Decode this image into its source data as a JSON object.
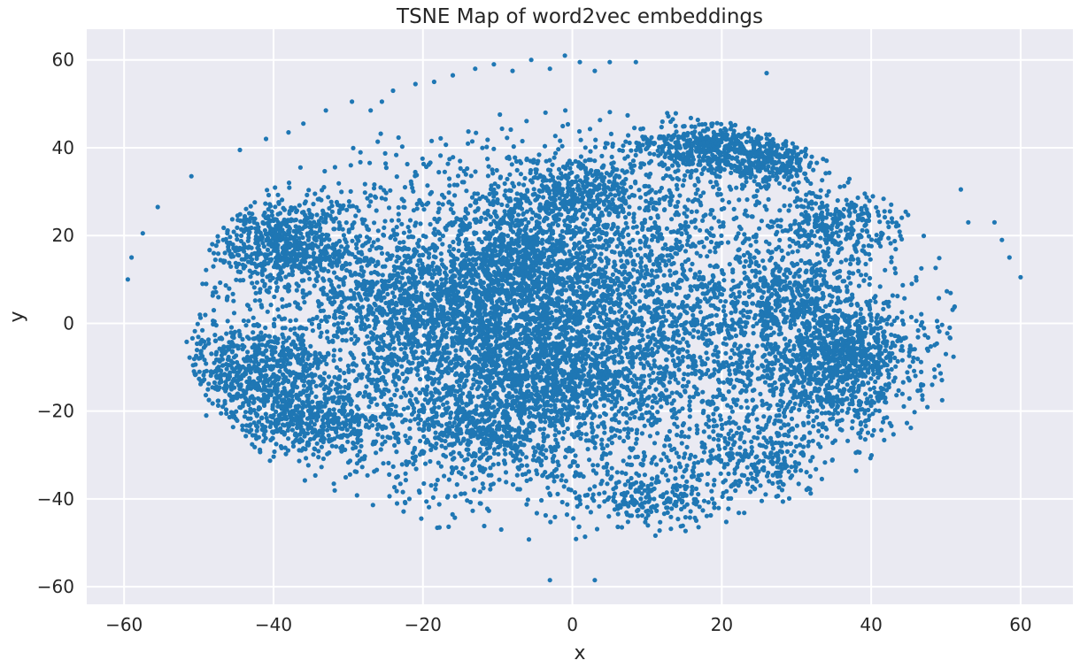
{
  "chart_data": {
    "type": "scatter",
    "title": "TSNE Map of word2vec embeddings",
    "xlabel": "x",
    "ylabel": "y",
    "xlim": [
      -65,
      67
    ],
    "ylim": [
      -64,
      67
    ],
    "xticks": [
      -60,
      -40,
      -20,
      0,
      20,
      40,
      60
    ],
    "yticks": [
      60,
      40,
      20,
      0,
      -20,
      -40,
      -60
    ],
    "xtick_labels": [
      "−60",
      "−40",
      "−20",
      "0",
      "20",
      "40",
      "60"
    ],
    "ytick_labels": [
      "60",
      "40",
      "20",
      "0",
      "−20",
      "−40",
      "−60"
    ],
    "grid": true,
    "legend": "none",
    "style": {
      "background": "#eaeaf2",
      "grid_color": "#ffffff",
      "point_color": "#1f77b4",
      "text_color": "#262626"
    },
    "clusters": [
      {
        "center": [
          0,
          0
        ],
        "spread": [
          22,
          20
        ],
        "count": 5200
      },
      {
        "center": [
          -38,
          18
        ],
        "spread": [
          5,
          5
        ],
        "count": 650
      },
      {
        "center": [
          -42,
          -12
        ],
        "spread": [
          5,
          6
        ],
        "count": 650
      },
      {
        "center": [
          -34,
          -22
        ],
        "spread": [
          5,
          4
        ],
        "count": 400
      },
      {
        "center": [
          -20,
          3
        ],
        "spread": [
          6,
          8
        ],
        "count": 600
      },
      {
        "center": [
          -7,
          14
        ],
        "spread": [
          6,
          7
        ],
        "count": 700
      },
      {
        "center": [
          -4,
          -10
        ],
        "spread": [
          7,
          8
        ],
        "count": 900
      },
      {
        "center": [
          -12,
          -25
        ],
        "spread": [
          5,
          5
        ],
        "count": 350
      },
      {
        "center": [
          18,
          40
        ],
        "spread": [
          5,
          3
        ],
        "count": 450
      },
      {
        "center": [
          27,
          37
        ],
        "spread": [
          3,
          3
        ],
        "count": 250
      },
      {
        "center": [
          34,
          -12
        ],
        "spread": [
          5,
          6
        ],
        "count": 600
      },
      {
        "center": [
          38,
          -5
        ],
        "spread": [
          4,
          4
        ],
        "count": 300
      },
      {
        "center": [
          25,
          -30
        ],
        "spread": [
          4,
          4
        ],
        "count": 200
      },
      {
        "center": [
          30,
          5
        ],
        "spread": [
          5,
          5
        ],
        "count": 350
      },
      {
        "center": [
          35,
          22
        ],
        "spread": [
          4,
          4
        ],
        "count": 250
      },
      {
        "center": [
          10,
          -40
        ],
        "spread": [
          6,
          3
        ],
        "count": 200
      },
      {
        "center": [
          2,
          30
        ],
        "spread": [
          5,
          4
        ],
        "count": 300
      }
    ],
    "outliers": [
      [
        -59.5,
        10
      ],
      [
        -59,
        15
      ],
      [
        -57.5,
        20.5
      ],
      [
        -55.5,
        26.5
      ],
      [
        -51,
        33.5
      ],
      [
        -44.5,
        39.5
      ],
      [
        -41,
        42
      ],
      [
        -38,
        43.5
      ],
      [
        -36,
        45.5
      ],
      [
        -33,
        48.5
      ],
      [
        -29.5,
        50.5
      ],
      [
        -27,
        48.5
      ],
      [
        -25.5,
        50.5
      ],
      [
        -24,
        53
      ],
      [
        -21,
        54.5
      ],
      [
        -18.5,
        55
      ],
      [
        -16,
        56.5
      ],
      [
        -13,
        58
      ],
      [
        -10.5,
        59
      ],
      [
        -8,
        57.5
      ],
      [
        -5.5,
        60
      ],
      [
        -3,
        58
      ],
      [
        -1,
        61
      ],
      [
        1,
        59.5
      ],
      [
        3,
        57.5
      ],
      [
        5,
        59.5
      ],
      [
        8.5,
        59.5
      ],
      [
        26,
        57
      ],
      [
        52,
        30.5
      ],
      [
        53,
        23
      ],
      [
        56.5,
        23
      ],
      [
        57.5,
        19
      ],
      [
        58.5,
        15
      ],
      [
        60,
        10.5
      ],
      [
        -3,
        -58.5
      ],
      [
        3,
        -58.5
      ],
      [
        -50,
        -8
      ],
      [
        -49,
        -21
      ],
      [
        -49.5,
        9
      ],
      [
        -48,
        16
      ],
      [
        50.5,
        -1
      ],
      [
        50,
        -7
      ],
      [
        49.5,
        -17.5
      ],
      [
        -48,
        3
      ]
    ]
  }
}
